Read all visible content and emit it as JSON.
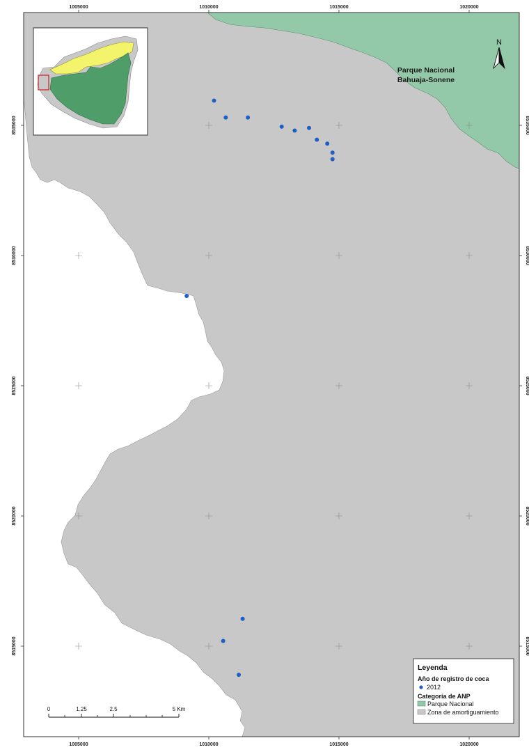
{
  "map": {
    "top_ticks": [
      "1005000",
      "1010000",
      "1015000",
      "1020000"
    ],
    "bottom_ticks": [
      "1005000",
      "1010000",
      "1015000",
      "1020000"
    ],
    "left_ticks": [
      "8535000",
      "8530000",
      "8525000",
      "8520000",
      "8515000"
    ],
    "right_ticks": [
      "8535000",
      "8530000",
      "8525000",
      "8520000",
      "8515000"
    ],
    "park_label_line1": "Parque Nacional",
    "park_label_line2": "Bahuaja-Sonene",
    "north_label": "N"
  },
  "colors": {
    "buffer_zone": "#c8c8c8",
    "national_park": "#93c9a8",
    "coca_point": "#1f5fc4",
    "inset_park": "#4f9e6a",
    "inset_yellow": "#f3f36c",
    "inset_extent": "#cc2222"
  },
  "legend": {
    "title": "Leyenda",
    "section1": "Año de registro de coca",
    "item_2012": "2012",
    "section2": "Categoría de ANP",
    "item_park": "Parque Nacional",
    "item_buffer": "Zona de amortiguamiento"
  },
  "scale_bar": {
    "labels": [
      "0",
      "1.25",
      "2.5",
      "5 Km"
    ]
  },
  "coca_points": [
    {
      "easting": 1010200,
      "northing": 8535950
    },
    {
      "easting": 1010650,
      "northing": 8535300
    },
    {
      "easting": 1011500,
      "northing": 8535300
    },
    {
      "easting": 1012800,
      "northing": 8534950
    },
    {
      "easting": 1013300,
      "northing": 8534800
    },
    {
      "easting": 1013850,
      "northing": 8534900
    },
    {
      "easting": 1014150,
      "northing": 8534450
    },
    {
      "easting": 1014550,
      "northing": 8534300
    },
    {
      "easting": 1014750,
      "northing": 8533950
    },
    {
      "easting": 1014750,
      "northing": 8533700
    },
    {
      "easting": 1009150,
      "northing": 8528450
    },
    {
      "easting": 1011300,
      "northing": 8516050
    },
    {
      "easting": 1010550,
      "northing": 8515200
    },
    {
      "easting": 1011150,
      "northing": 8513900
    }
  ]
}
